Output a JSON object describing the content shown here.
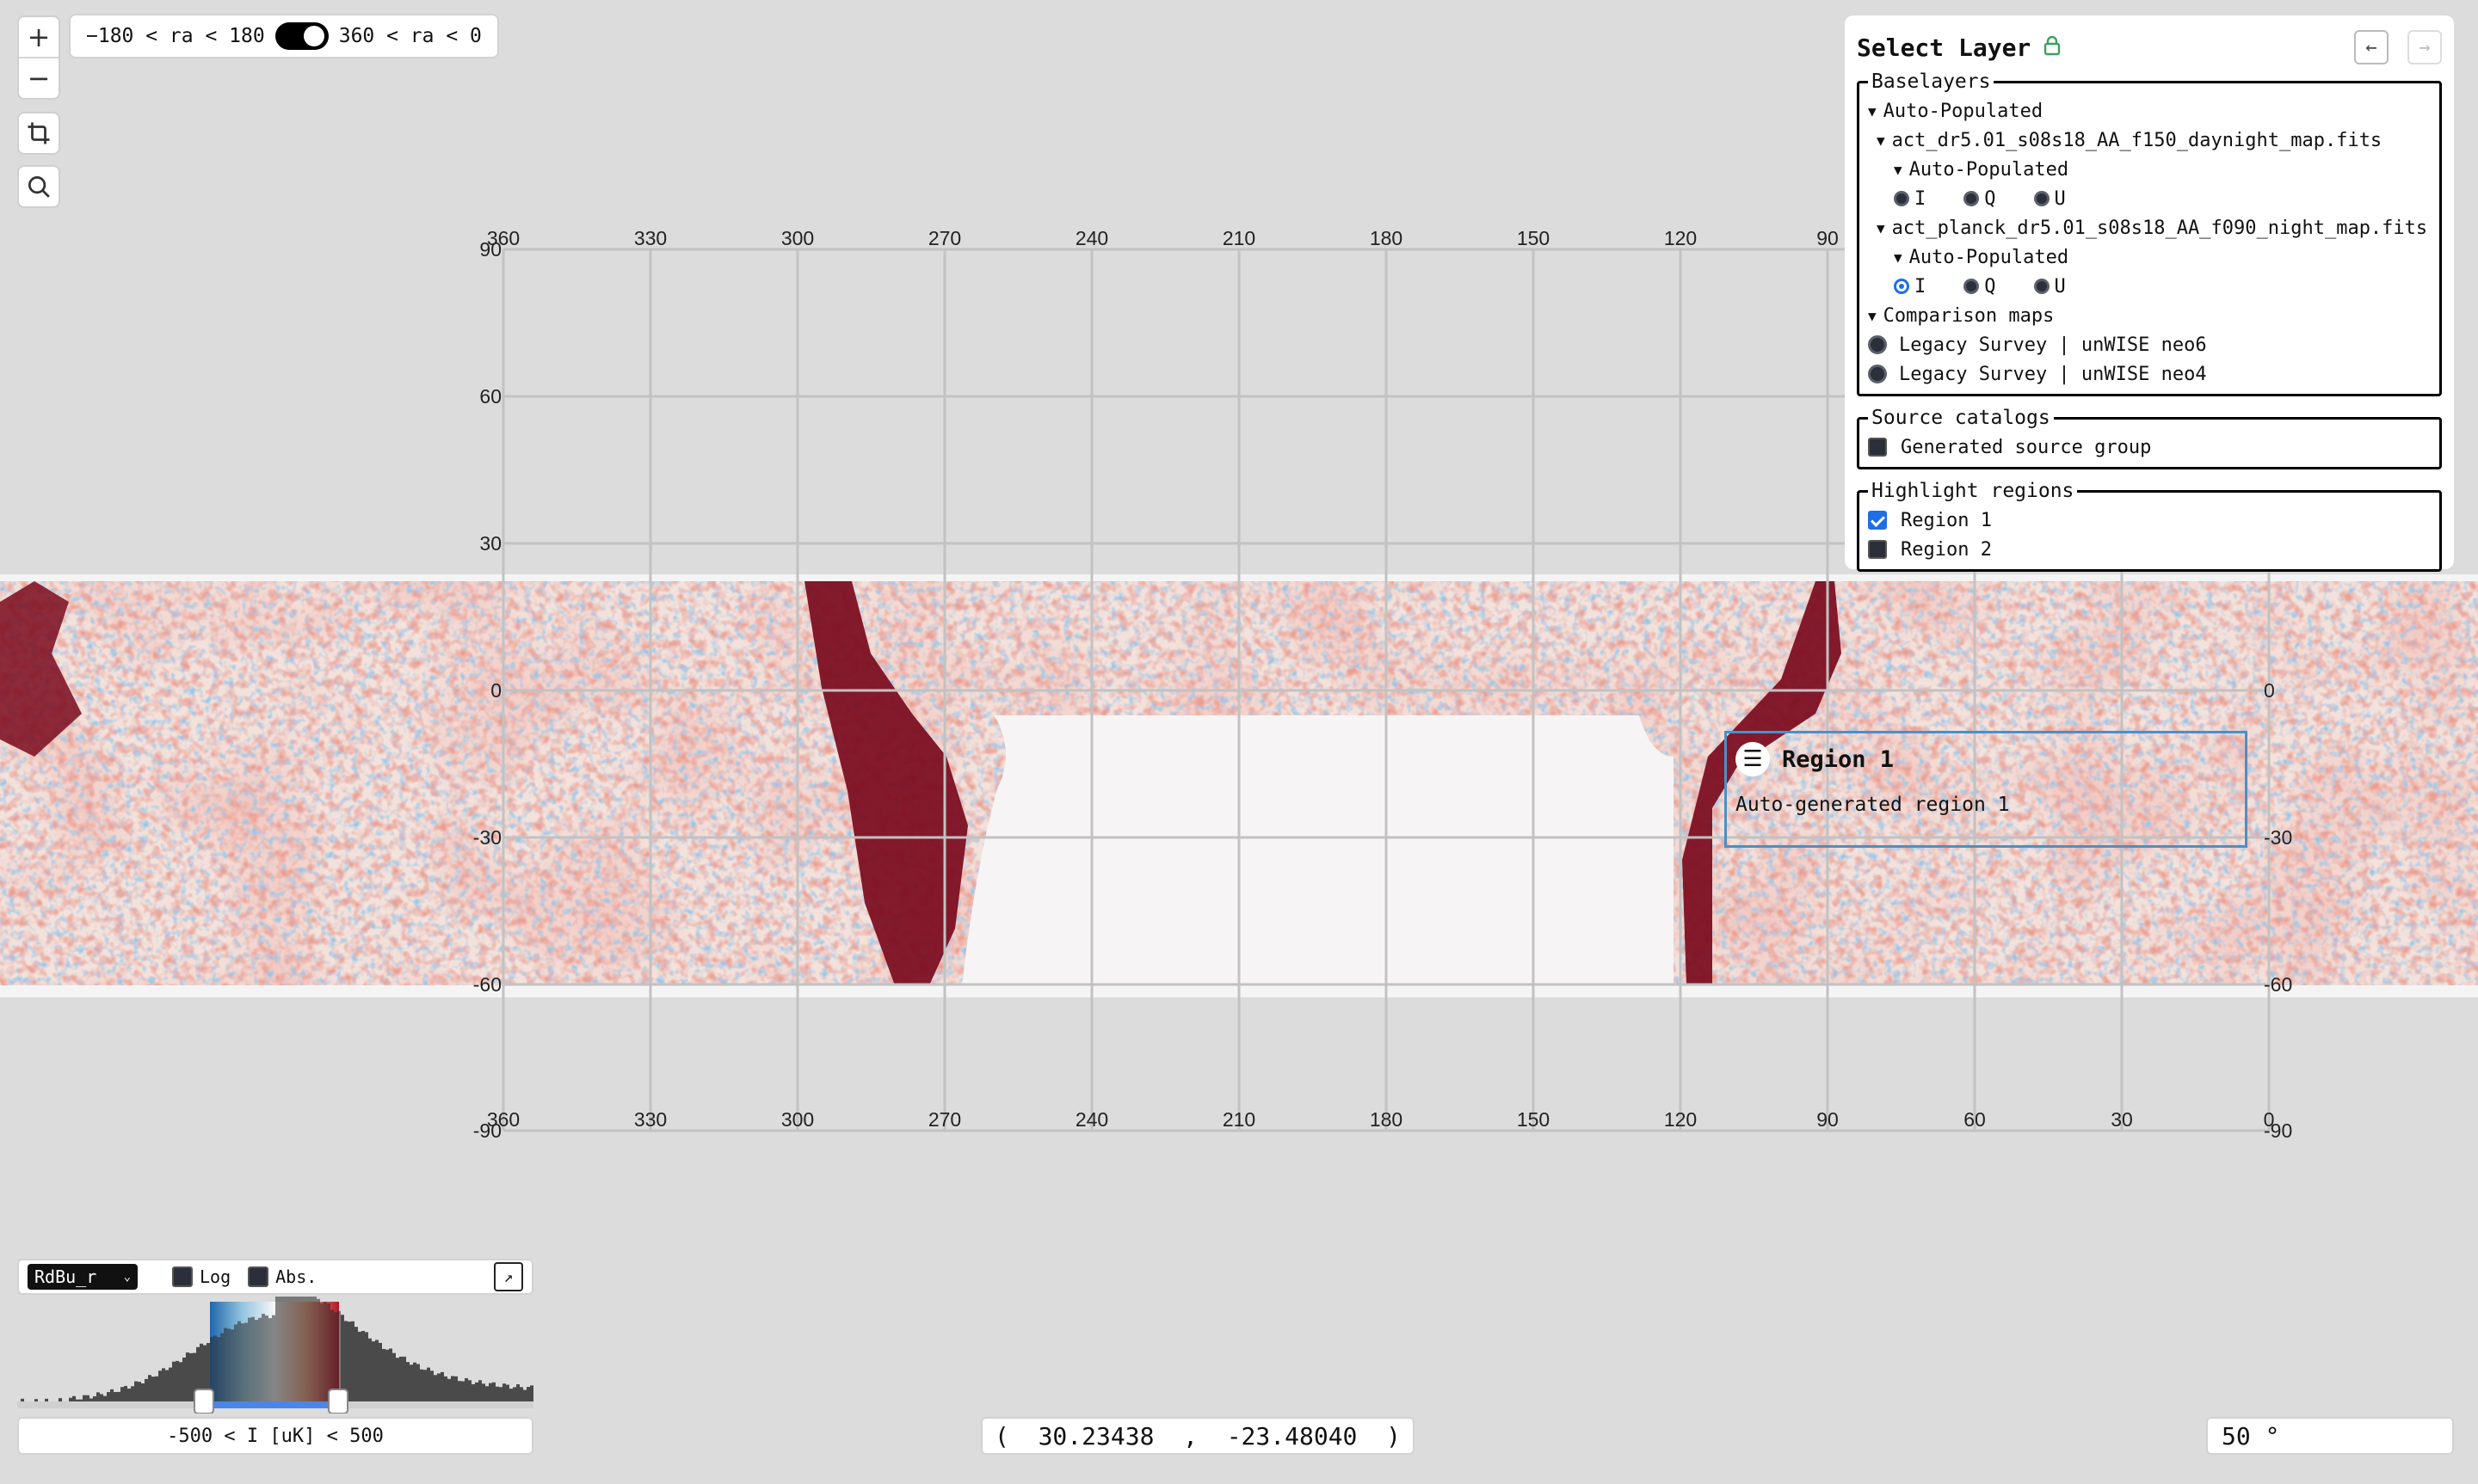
{
  "map_controls": {
    "zoom_in": "+",
    "zoom_out": "−",
    "crop_icon": "crop-icon",
    "search_icon": "search-icon"
  },
  "ra_toggle": {
    "left_label": "−180 < ra < 180",
    "right_label": "360 < ra < 0",
    "state": "right"
  },
  "graticule": {
    "top_ra_labels": [
      "360",
      "330",
      "300",
      "270",
      "240",
      "210",
      "180",
      "150",
      "120",
      "90"
    ],
    "bottom_ra_labels": [
      "360",
      "330",
      "300",
      "270",
      "240",
      "210",
      "180",
      "150",
      "120",
      "90",
      "60",
      "30",
      "0"
    ],
    "left_dec_labels": [
      "90",
      "60",
      "30",
      "0",
      "-30",
      "-60",
      "-90"
    ],
    "right_dec_labels": [
      "0",
      "-30",
      "-60",
      "-90"
    ]
  },
  "layer_panel": {
    "title": "Select Layer",
    "lock_icon": "lock-icon",
    "back_icon": "arrow-left-icon",
    "forward_icon": "arrow-right-icon",
    "baselayers": {
      "legend": "Baselayers",
      "group_label": "Auto-Populated",
      "maps": [
        {
          "file": "act_dr5.01_s08s18_AA_f150_daynight_map.fits",
          "sub_label": "Auto-Populated",
          "stokes": [
            "I",
            "Q",
            "U"
          ],
          "selected": ""
        },
        {
          "file": "act_planck_dr5.01_s08s18_AA_f090_night_map.fits",
          "sub_label": "Auto-Populated",
          "stokes": [
            "I",
            "Q",
            "U"
          ],
          "selected": "I"
        }
      ],
      "comparison": {
        "label": "Comparison maps",
        "items": [
          "Legacy Survey | unWISE neo6",
          "Legacy Survey | unWISE neo4"
        ]
      }
    },
    "source_catalogs": {
      "legend": "Source catalogs",
      "items": [
        {
          "label": "Generated source group",
          "checked": false
        }
      ]
    },
    "highlight_regions": {
      "legend": "Highlight regions",
      "items": [
        {
          "label": "Region 1",
          "checked": true
        },
        {
          "label": "Region 2",
          "checked": false
        }
      ]
    }
  },
  "region_popup": {
    "title": "Region 1",
    "description": "Auto-generated region 1",
    "menu_icon": "hamburger-menu-icon"
  },
  "colormap": {
    "name": "RdBu_r",
    "log_label": "Log",
    "log_checked": false,
    "abs_label": "Abs.",
    "abs_checked": false,
    "expand_icon": "expand-arrow-icon",
    "range_text": "-500 < I [uK] < 500"
  },
  "coordinates": {
    "open": "(",
    "ra": "30.23438",
    "sep": ",",
    "dec": "-23.48040",
    "close": ")"
  },
  "zoom_field": {
    "value": "50 °"
  }
}
